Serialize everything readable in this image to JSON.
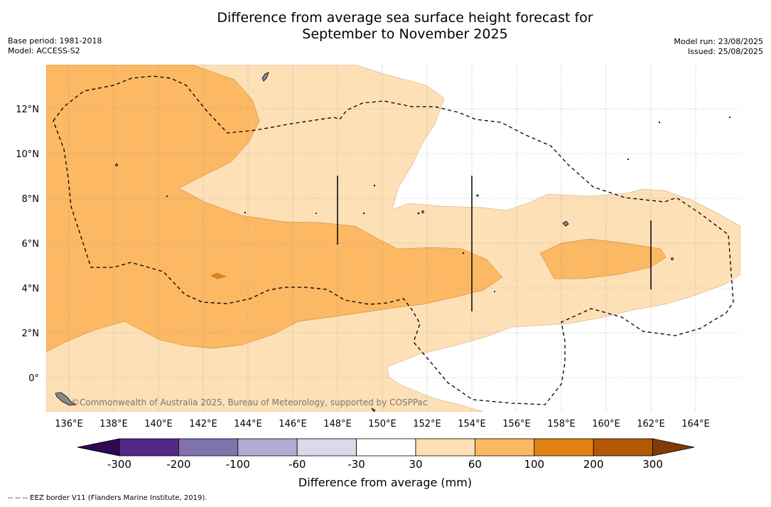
{
  "title_line1": "Difference from average sea surface height forecast for",
  "title_line2": "September to November 2025",
  "base_period": "Base period: 1981-2018",
  "model": "Model: ACCESS-S2",
  "model_run": "Model run: 23/08/2025",
  "issued": "Issued: 25/08/2025",
  "credit": "©Commonwealth of Australia 2025, Bureau of Meteorology, supported by COSPPac",
  "footer_note": "--  --  -- EEZ border V11 (Flanders Marine Institute, 2019).",
  "map": {
    "lon_ticks": [
      "136°E",
      "138°E",
      "140°E",
      "142°E",
      "144°E",
      "146°E",
      "148°E",
      "150°E",
      "152°E",
      "154°E",
      "156°E",
      "158°E",
      "160°E",
      "162°E",
      "164°E"
    ],
    "lat_ticks": [
      "12°N",
      "10°N",
      "8°N",
      "6°N",
      "4°N",
      "2°N",
      "0°"
    ],
    "extent": {
      "lon_min": 135,
      "lon_max": 166,
      "lat_min": -1.5,
      "lat_max": 14
    }
  },
  "colorbar": {
    "label": "Difference from average (mm)",
    "tick_labels": [
      "-300",
      "-200",
      "-100",
      "-60",
      "-30",
      "30",
      "60",
      "100",
      "200",
      "300"
    ],
    "colors": [
      "#2e0854",
      "#542788",
      "#8073ac",
      "#b2abd2",
      "#d8daeb",
      "#ffffff",
      "#fee0b6",
      "#fdb863",
      "#e08214",
      "#b35806",
      "#7f3b08"
    ]
  },
  "colors": {
    "band_30_60": "#fee0b6",
    "band_60_100": "#fdb863",
    "band_100_200": "#e08214",
    "land": "#888888"
  }
}
